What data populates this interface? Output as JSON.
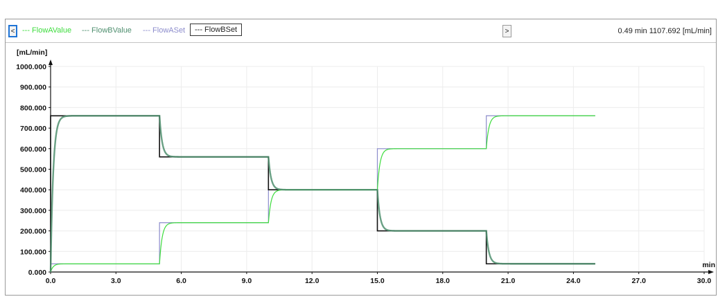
{
  "legend": {
    "nav_left": "<",
    "nav_right": ">",
    "items": [
      {
        "label": "--- FlowAValue",
        "color": "#3ddc3d"
      },
      {
        "label": "--- FlowBValue",
        "color": "#4f8f6f"
      },
      {
        "label": "--- FlowASet",
        "color": "#8c8ccc"
      },
      {
        "label": "--- FlowBSet",
        "color": "#222222",
        "selected": true
      }
    ],
    "readout": "0.49 min 1107.692 [mL/min]"
  },
  "chart_data": {
    "type": "line",
    "xlabel": "min",
    "ylabel": "[mL/min]",
    "xlim": [
      0,
      30
    ],
    "ylim": [
      0,
      1000
    ],
    "x_ticks": [
      "0.0",
      "3.0",
      "6.0",
      "9.0",
      "12.0",
      "15.0",
      "18.0",
      "21.0",
      "24.0",
      "27.0",
      "30.0"
    ],
    "y_ticks": [
      "0.000",
      "100.000",
      "200.000",
      "300.000",
      "400.000",
      "500.000",
      "600.000",
      "700.000",
      "800.000",
      "900.000",
      "1000.000"
    ],
    "grid": true,
    "series": [
      {
        "name": "FlowASet",
        "color": "#8c8ccc",
        "kind": "set",
        "steps": [
          [
            0,
            0
          ],
          [
            0,
            40
          ],
          [
            5,
            40
          ],
          [
            5,
            240
          ],
          [
            10,
            240
          ],
          [
            10,
            400
          ],
          [
            15,
            400
          ],
          [
            15,
            600
          ],
          [
            20,
            600
          ],
          [
            20,
            760
          ],
          [
            25,
            760
          ]
        ]
      },
      {
        "name": "FlowBSet",
        "color": "#111111",
        "kind": "set",
        "steps": [
          [
            0,
            0
          ],
          [
            0,
            760
          ],
          [
            5,
            760
          ],
          [
            5,
            560
          ],
          [
            10,
            560
          ],
          [
            10,
            400
          ],
          [
            15,
            400
          ],
          [
            15,
            200
          ],
          [
            20,
            200
          ],
          [
            20,
            40
          ],
          [
            25,
            40
          ]
        ]
      },
      {
        "name": "FlowAValue",
        "color": "#3ddc3d",
        "kind": "value",
        "start": 0,
        "levels": [
          [
            0,
            40
          ],
          [
            5,
            240
          ],
          [
            10,
            400
          ],
          [
            15,
            600
          ],
          [
            20,
            760
          ]
        ],
        "end": 25
      },
      {
        "name": "FlowBValue",
        "color": "#4f8f6f",
        "kind": "value",
        "start": 0,
        "levels": [
          [
            0,
            760
          ],
          [
            5,
            560
          ],
          [
            10,
            400
          ],
          [
            15,
            200
          ],
          [
            20,
            40
          ]
        ],
        "end": 25
      }
    ]
  }
}
